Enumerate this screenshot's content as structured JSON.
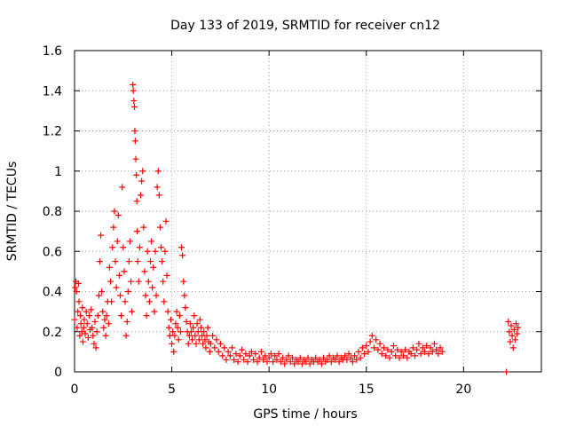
{
  "chart_data": {
    "type": "scatter",
    "title": "Day 133 of 2019, SRMTID for receiver cn12",
    "xlabel": "GPS time / hours",
    "ylabel": "SRMTID / TECUs",
    "xlim": [
      0,
      24
    ],
    "ylim": [
      0,
      1.6
    ],
    "x_ticks": [
      0,
      5,
      10,
      15,
      20
    ],
    "x_tick_labels": [
      "0",
      "5",
      "10",
      "15",
      "20"
    ],
    "y_ticks": [
      0,
      0.2,
      0.4,
      0.6,
      0.8,
      1.0,
      1.2,
      1.4,
      1.6
    ],
    "y_tick_labels": [
      "0",
      "0.2",
      "0.4",
      "0.6",
      "0.8",
      "1",
      "1.2",
      "1.4",
      "1.6"
    ],
    "grid": true,
    "marker": "+",
    "marker_color": "#ff0000",
    "series": [
      {
        "name": "cn12",
        "points": [
          [
            0.0,
            0.26
          ],
          [
            0.03,
            0.42
          ],
          [
            0.07,
            0.45
          ],
          [
            0.1,
            0.4
          ],
          [
            0.13,
            0.22
          ],
          [
            0.17,
            0.3
          ],
          [
            0.2,
            0.44
          ],
          [
            0.23,
            0.35
          ],
          [
            0.27,
            0.18
          ],
          [
            0.3,
            0.28
          ],
          [
            0.33,
            0.24
          ],
          [
            0.37,
            0.2
          ],
          [
            0.4,
            0.32
          ],
          [
            0.43,
            0.15
          ],
          [
            0.47,
            0.22
          ],
          [
            0.5,
            0.26
          ],
          [
            0.55,
            0.19
          ],
          [
            0.6,
            0.3
          ],
          [
            0.65,
            0.24
          ],
          [
            0.7,
            0.17
          ],
          [
            0.75,
            0.28
          ],
          [
            0.8,
            0.21
          ],
          [
            0.85,
            0.31
          ],
          [
            0.9,
            0.22
          ],
          [
            0.95,
            0.18
          ],
          [
            1.0,
            0.14
          ],
          [
            1.05,
            0.25
          ],
          [
            1.1,
            0.12
          ],
          [
            1.15,
            0.2
          ],
          [
            1.2,
            0.28
          ],
          [
            1.25,
            0.38
          ],
          [
            1.3,
            0.55
          ],
          [
            1.35,
            0.68
          ],
          [
            1.4,
            0.4
          ],
          [
            1.45,
            0.3
          ],
          [
            1.5,
            0.22
          ],
          [
            1.55,
            0.26
          ],
          [
            1.6,
            0.18
          ],
          [
            1.65,
            0.28
          ],
          [
            1.7,
            0.35
          ],
          [
            1.75,
            0.24
          ],
          [
            1.8,
            0.52
          ],
          [
            1.85,
            0.45
          ],
          [
            1.9,
            0.35
          ],
          [
            1.95,
            0.62
          ],
          [
            2.0,
            0.72
          ],
          [
            2.05,
            0.8
          ],
          [
            2.1,
            0.55
          ],
          [
            2.15,
            0.42
          ],
          [
            2.2,
            0.65
          ],
          [
            2.25,
            0.78
          ],
          [
            2.3,
            0.48
          ],
          [
            2.35,
            0.38
          ],
          [
            2.4,
            0.28
          ],
          [
            2.45,
            0.92
          ],
          [
            2.5,
            0.62
          ],
          [
            2.55,
            0.5
          ],
          [
            2.6,
            0.35
          ],
          [
            2.65,
            0.18
          ],
          [
            2.7,
            0.25
          ],
          [
            2.75,
            0.4
          ],
          [
            2.8,
            0.55
          ],
          [
            2.85,
            0.65
          ],
          [
            2.9,
            0.45
          ],
          [
            2.95,
            0.3
          ],
          [
            3.0,
            1.43
          ],
          [
            3.02,
            1.4
          ],
          [
            3.05,
            1.35
          ],
          [
            3.08,
            1.32
          ],
          [
            3.1,
            1.2
          ],
          [
            3.12,
            1.15
          ],
          [
            3.15,
            1.06
          ],
          [
            3.18,
            0.98
          ],
          [
            3.2,
            0.85
          ],
          [
            3.22,
            0.7
          ],
          [
            3.25,
            0.55
          ],
          [
            3.3,
            0.45
          ],
          [
            3.35,
            0.62
          ],
          [
            3.4,
            0.88
          ],
          [
            3.45,
            0.95
          ],
          [
            3.5,
            1.0
          ],
          [
            3.55,
            0.72
          ],
          [
            3.6,
            0.5
          ],
          [
            3.65,
            0.38
          ],
          [
            3.7,
            0.28
          ],
          [
            3.75,
            0.6
          ],
          [
            3.8,
            0.45
          ],
          [
            3.85,
            0.35
          ],
          [
            3.9,
            0.55
          ],
          [
            3.95,
            0.65
          ],
          [
            4.0,
            0.42
          ],
          [
            4.05,
            0.52
          ],
          [
            4.1,
            0.3
          ],
          [
            4.15,
            0.6
          ],
          [
            4.2,
            0.38
          ],
          [
            4.25,
            0.92
          ],
          [
            4.3,
            1.0
          ],
          [
            4.35,
            0.88
          ],
          [
            4.4,
            0.72
          ],
          [
            4.45,
            0.62
          ],
          [
            4.5,
            0.55
          ],
          [
            4.55,
            0.45
          ],
          [
            4.6,
            0.35
          ],
          [
            4.65,
            0.6
          ],
          [
            4.7,
            0.75
          ],
          [
            4.75,
            0.48
          ],
          [
            4.8,
            0.3
          ],
          [
            4.85,
            0.22
          ],
          [
            4.9,
            0.18
          ],
          [
            4.95,
            0.26
          ],
          [
            5.0,
            0.14
          ],
          [
            5.05,
            0.2
          ],
          [
            5.1,
            0.1
          ],
          [
            5.15,
            0.18
          ],
          [
            5.2,
            0.24
          ],
          [
            5.25,
            0.3
          ],
          [
            5.3,
            0.22
          ],
          [
            5.35,
            0.16
          ],
          [
            5.4,
            0.28
          ],
          [
            5.45,
            0.2
          ],
          [
            5.5,
            0.62
          ],
          [
            5.55,
            0.58
          ],
          [
            5.6,
            0.45
          ],
          [
            5.65,
            0.38
          ],
          [
            5.7,
            0.32
          ],
          [
            5.75,
            0.25
          ],
          [
            5.8,
            0.2
          ],
          [
            5.85,
            0.14
          ],
          [
            5.9,
            0.18
          ],
          [
            5.95,
            0.24
          ],
          [
            6.0,
            0.2
          ],
          [
            6.05,
            0.16
          ],
          [
            6.1,
            0.22
          ],
          [
            6.15,
            0.28
          ],
          [
            6.2,
            0.18
          ],
          [
            6.25,
            0.14
          ],
          [
            6.3,
            0.24
          ],
          [
            6.35,
            0.2
          ],
          [
            6.4,
            0.16
          ],
          [
            6.45,
            0.26
          ],
          [
            6.5,
            0.22
          ],
          [
            6.55,
            0.18
          ],
          [
            6.6,
            0.14
          ],
          [
            6.65,
            0.2
          ],
          [
            6.7,
            0.16
          ],
          [
            6.75,
            0.12
          ],
          [
            6.8,
            0.18
          ],
          [
            6.85,
            0.22
          ],
          [
            6.9,
            0.15
          ],
          [
            6.95,
            0.1
          ],
          [
            7.0,
            0.14
          ],
          [
            7.1,
            0.18
          ],
          [
            7.2,
            0.12
          ],
          [
            7.3,
            0.16
          ],
          [
            7.4,
            0.1
          ],
          [
            7.5,
            0.14
          ],
          [
            7.6,
            0.08
          ],
          [
            7.7,
            0.12
          ],
          [
            7.8,
            0.06
          ],
          [
            7.9,
            0.1
          ],
          [
            8.0,
            0.08
          ],
          [
            8.1,
            0.12
          ],
          [
            8.2,
            0.06
          ],
          [
            8.3,
            0.09
          ],
          [
            8.4,
            0.05
          ],
          [
            8.5,
            0.08
          ],
          [
            8.6,
            0.11
          ],
          [
            8.7,
            0.06
          ],
          [
            8.8,
            0.09
          ],
          [
            8.9,
            0.05
          ],
          [
            9.0,
            0.08
          ],
          [
            9.1,
            0.1
          ],
          [
            9.2,
            0.06
          ],
          [
            9.3,
            0.09
          ],
          [
            9.4,
            0.05
          ],
          [
            9.5,
            0.07
          ],
          [
            9.6,
            0.1
          ],
          [
            9.7,
            0.06
          ],
          [
            9.8,
            0.08
          ],
          [
            9.9,
            0.05
          ],
          [
            10.0,
            0.07
          ],
          [
            10.1,
            0.09
          ],
          [
            10.2,
            0.05
          ],
          [
            10.3,
            0.08
          ],
          [
            10.4,
            0.06
          ],
          [
            10.5,
            0.09
          ],
          [
            10.6,
            0.05
          ],
          [
            10.7,
            0.07
          ],
          [
            10.8,
            0.04
          ],
          [
            10.9,
            0.06
          ],
          [
            11.0,
            0.08
          ],
          [
            11.1,
            0.05
          ],
          [
            11.2,
            0.07
          ],
          [
            11.3,
            0.04
          ],
          [
            11.4,
            0.06
          ],
          [
            11.5,
            0.05
          ],
          [
            11.6,
            0.07
          ],
          [
            11.7,
            0.04
          ],
          [
            11.8,
            0.06
          ],
          [
            11.9,
            0.05
          ],
          [
            12.0,
            0.07
          ],
          [
            12.1,
            0.04
          ],
          [
            12.2,
            0.06
          ],
          [
            12.3,
            0.05
          ],
          [
            12.4,
            0.07
          ],
          [
            12.5,
            0.05
          ],
          [
            12.6,
            0.06
          ],
          [
            12.7,
            0.04
          ],
          [
            12.8,
            0.07
          ],
          [
            12.9,
            0.05
          ],
          [
            13.0,
            0.06
          ],
          [
            13.1,
            0.08
          ],
          [
            13.2,
            0.05
          ],
          [
            13.3,
            0.07
          ],
          [
            13.4,
            0.06
          ],
          [
            13.5,
            0.08
          ],
          [
            13.6,
            0.05
          ],
          [
            13.7,
            0.07
          ],
          [
            13.8,
            0.06
          ],
          [
            13.9,
            0.08
          ],
          [
            14.0,
            0.06
          ],
          [
            14.1,
            0.09
          ],
          [
            14.2,
            0.07
          ],
          [
            14.3,
            0.05
          ],
          [
            14.4,
            0.08
          ],
          [
            14.5,
            0.06
          ],
          [
            14.6,
            0.1
          ],
          [
            14.7,
            0.07
          ],
          [
            14.8,
            0.12
          ],
          [
            14.9,
            0.09
          ],
          [
            15.0,
            0.13
          ],
          [
            15.1,
            0.1
          ],
          [
            15.2,
            0.15
          ],
          [
            15.3,
            0.18
          ],
          [
            15.4,
            0.12
          ],
          [
            15.5,
            0.16
          ],
          [
            15.6,
            0.11
          ],
          [
            15.7,
            0.14
          ],
          [
            15.8,
            0.09
          ],
          [
            15.9,
            0.12
          ],
          [
            16.0,
            0.08
          ],
          [
            16.1,
            0.11
          ],
          [
            16.2,
            0.07
          ],
          [
            16.3,
            0.1
          ],
          [
            16.4,
            0.13
          ],
          [
            16.5,
            0.08
          ],
          [
            16.6,
            0.11
          ],
          [
            16.7,
            0.07
          ],
          [
            16.8,
            0.1
          ],
          [
            16.9,
            0.08
          ],
          [
            17.0,
            0.11
          ],
          [
            17.1,
            0.07
          ],
          [
            17.2,
            0.1
          ],
          [
            17.3,
            0.09
          ],
          [
            17.4,
            0.12
          ],
          [
            17.5,
            0.08
          ],
          [
            17.6,
            0.11
          ],
          [
            17.7,
            0.14
          ],
          [
            17.8,
            0.09
          ],
          [
            17.9,
            0.12
          ],
          [
            18.0,
            0.1
          ],
          [
            18.1,
            0.13
          ],
          [
            18.2,
            0.09
          ],
          [
            18.3,
            0.12
          ],
          [
            18.4,
            0.1
          ],
          [
            18.5,
            0.14
          ],
          [
            18.6,
            0.11
          ],
          [
            18.7,
            0.09
          ],
          [
            18.8,
            0.12
          ],
          [
            18.9,
            0.1
          ],
          [
            22.2,
            0.0
          ],
          [
            22.3,
            0.25
          ],
          [
            22.35,
            0.2
          ],
          [
            22.4,
            0.15
          ],
          [
            22.45,
            0.23
          ],
          [
            22.5,
            0.18
          ],
          [
            22.55,
            0.12
          ],
          [
            22.6,
            0.21
          ],
          [
            22.65,
            0.16
          ],
          [
            22.7,
            0.24
          ],
          [
            22.75,
            0.19
          ],
          [
            22.8,
            0.22
          ]
        ]
      }
    ]
  }
}
